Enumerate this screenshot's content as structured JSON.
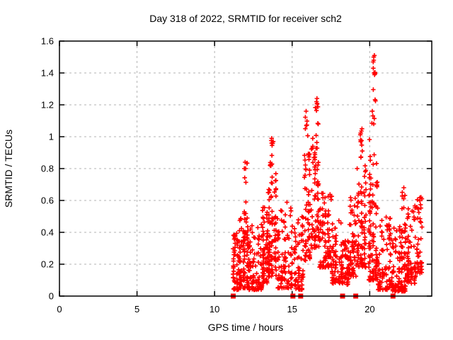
{
  "window": {
    "title": "Day 318 of 2022, SRMTID for receiver sch2"
  },
  "colors": {
    "marker": "#ff0000",
    "grid": "#b3b3b3",
    "axis": "#000000",
    "background": "#ffffff"
  },
  "chart_data": {
    "type": "scatter",
    "title": "Day 318 of 2022, SRMTID for receiver sch2",
    "xlabel": "GPS time / hours",
    "ylabel": "SRMTID / TECUs",
    "xlim": [
      0,
      24
    ],
    "ylim": [
      0,
      1.6
    ],
    "xticks": [
      0,
      5,
      10,
      15,
      20
    ],
    "xtick_labels": [
      "0",
      "5",
      "10",
      "15",
      "20"
    ],
    "yticks": [
      0,
      0.2,
      0.4,
      0.6,
      0.8,
      1.0,
      1.2,
      1.4,
      1.6
    ],
    "ytick_labels": [
      "0",
      "0.2",
      "0.4",
      "0.6",
      "0.8",
      "1",
      "1.2",
      "1.4",
      "1.6"
    ],
    "grid": true,
    "legend": "none",
    "marker": "plus",
    "marker_color": "#ff0000",
    "data_x_extent": [
      11.15,
      23.4
    ],
    "point_count_approx": 1550,
    "clusters": [
      {
        "x_range": [
          11.15,
          11.6
        ],
        "y_range": [
          0.04,
          0.4
        ],
        "n": 55,
        "bias": 1.9
      },
      {
        "x_range": [
          11.55,
          12.25
        ],
        "y_range": [
          0.05,
          0.52
        ],
        "n": 100,
        "bias": 2.0
      },
      {
        "x_range": [
          11.9,
          12.1
        ],
        "y_range": [
          0.42,
          0.84
        ],
        "n": 11,
        "bias": 1.0
      },
      {
        "x_range": [
          12.2,
          13.1
        ],
        "y_range": [
          0.04,
          0.45
        ],
        "n": 85,
        "bias": 2.1
      },
      {
        "x_range": [
          13.05,
          13.45
        ],
        "y_range": [
          0.08,
          0.57
        ],
        "n": 65,
        "bias": 1.7
      },
      {
        "x_range": [
          13.4,
          14.0
        ],
        "y_range": [
          0.12,
          0.78
        ],
        "n": 90,
        "bias": 1.7
      },
      {
        "x_range": [
          13.58,
          13.78
        ],
        "y_range": [
          0.8,
          1.0
        ],
        "n": 12,
        "bias": 1.0
      },
      {
        "x_range": [
          14.0,
          15.05
        ],
        "y_range": [
          0.05,
          0.6
        ],
        "n": 100,
        "bias": 2.0
      },
      {
        "x_range": [
          15.08,
          15.75
        ],
        "y_range": [
          0.04,
          0.5
        ],
        "n": 65,
        "bias": 1.8
      },
      {
        "x_range": [
          15.75,
          16.2
        ],
        "y_range": [
          0.22,
          0.92
        ],
        "n": 55,
        "bias": 1.5
      },
      {
        "x_range": [
          15.85,
          16.0
        ],
        "y_range": [
          0.95,
          1.17
        ],
        "n": 5,
        "bias": 1.0
      },
      {
        "x_range": [
          16.2,
          16.75
        ],
        "y_range": [
          0.3,
          1.02
        ],
        "n": 70,
        "bias": 1.6
      },
      {
        "x_range": [
          16.5,
          16.68
        ],
        "y_range": [
          1.02,
          1.25
        ],
        "n": 7,
        "bias": 1.0
      },
      {
        "x_range": [
          16.7,
          17.6
        ],
        "y_range": [
          0.18,
          0.66
        ],
        "n": 95,
        "bias": 1.6
      },
      {
        "x_range": [
          17.55,
          18.3
        ],
        "y_range": [
          0.08,
          0.48
        ],
        "n": 75,
        "bias": 1.8
      },
      {
        "x_range": [
          18.28,
          18.7
        ],
        "y_range": [
          0.07,
          0.35
        ],
        "n": 45,
        "bias": 1.5
      },
      {
        "x_range": [
          18.65,
          19.15
        ],
        "y_range": [
          0.12,
          0.62
        ],
        "n": 55,
        "bias": 1.4
      },
      {
        "x_range": [
          19.15,
          19.8
        ],
        "y_range": [
          0.18,
          0.88
        ],
        "n": 85,
        "bias": 1.6
      },
      {
        "x_range": [
          19.38,
          19.6
        ],
        "y_range": [
          0.88,
          1.06
        ],
        "n": 8,
        "bias": 1.0
      },
      {
        "x_range": [
          19.9,
          20.55
        ],
        "y_range": [
          0.1,
          1.0
        ],
        "n": 110,
        "bias": 2.0
      },
      {
        "x_range": [
          20.12,
          20.42
        ],
        "y_range": [
          1.0,
          1.3
        ],
        "n": 8,
        "bias": 1.0
      },
      {
        "x_range": [
          20.2,
          20.38
        ],
        "y_range": [
          1.38,
          1.52
        ],
        "n": 5,
        "bias": 1.0
      },
      {
        "x_range": [
          20.5,
          21.4
        ],
        "y_range": [
          0.04,
          0.52
        ],
        "n": 85,
        "bias": 2.2
      },
      {
        "x_range": [
          21.4,
          22.35
        ],
        "y_range": [
          0.03,
          0.45
        ],
        "n": 120,
        "bias": 2.3
      },
      {
        "x_range": [
          22.08,
          22.3
        ],
        "y_range": [
          0.45,
          0.68
        ],
        "n": 7,
        "bias": 1.0
      },
      {
        "x_range": [
          22.35,
          23.0
        ],
        "y_range": [
          0.08,
          0.57
        ],
        "n": 75,
        "bias": 1.7
      },
      {
        "x_range": [
          23.0,
          23.4
        ],
        "y_range": [
          0.14,
          0.64
        ],
        "n": 40,
        "bias": 1.4
      }
    ],
    "notable_points": [
      {
        "x": 20.3,
        "y": 1.51
      },
      {
        "x": 20.26,
        "y": 1.48
      },
      {
        "x": 20.23,
        "y": 1.43
      },
      {
        "x": 20.28,
        "y": 1.4
      },
      {
        "x": 16.6,
        "y": 1.24
      },
      {
        "x": 16.57,
        "y": 1.22
      },
      {
        "x": 15.9,
        "y": 1.16
      },
      {
        "x": 15.92,
        "y": 1.07
      },
      {
        "x": 19.5,
        "y": 1.05
      },
      {
        "x": 13.68,
        "y": 0.99
      },
      {
        "x": 13.7,
        "y": 0.96
      },
      {
        "x": 11.97,
        "y": 0.84
      },
      {
        "x": 12.0,
        "y": 0.8
      },
      {
        "x": 22.2,
        "y": 0.68
      },
      {
        "x": 23.3,
        "y": 0.62
      }
    ],
    "baseline_markers": {
      "marker": "filled-square",
      "color": "#ff0000",
      "y": 0,
      "hours": [
        11.2,
        15.05,
        15.55,
        18.25,
        19.1,
        21.5
      ]
    }
  }
}
